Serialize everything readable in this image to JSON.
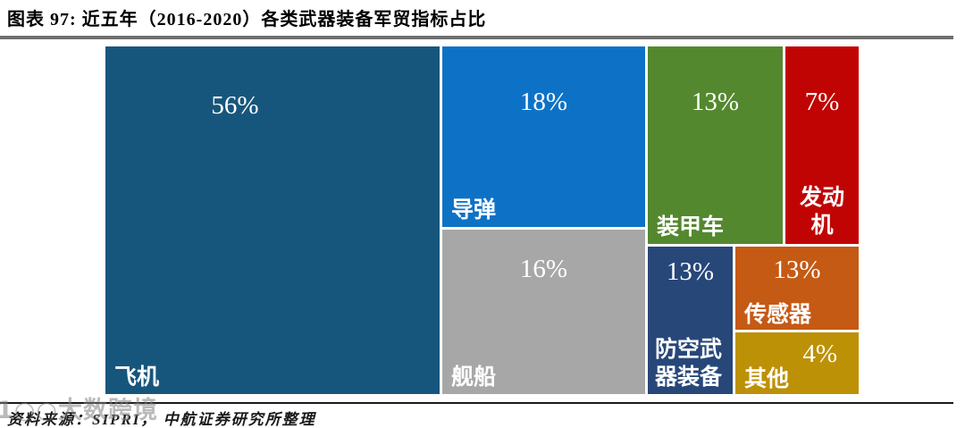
{
  "title": "图表 97:  近五年（2016-2020）各类武器装备军贸指标占比",
  "source_line": "资料来源：SIPRI，  中航证券研究所整理",
  "watermark": "1○○大数跨境",
  "chart_data": {
    "type": "treemap",
    "title": "近五年（2016-2020）各类武器装备军贸指标占比",
    "unit": "percent",
    "legend": "none",
    "items": [
      {
        "label": "飞机",
        "value": 56,
        "pct": "56%",
        "color": "#17567C"
      },
      {
        "label": "导弹",
        "value": 18,
        "pct": "18%",
        "color": "#0D72C6"
      },
      {
        "label": "舰船",
        "value": 16,
        "pct": "16%",
        "color": "#A7A7A7"
      },
      {
        "label": "装甲车",
        "value": 13,
        "pct": "13%",
        "color": "#54882F"
      },
      {
        "label": "发动机",
        "value": 7,
        "pct": "7%",
        "color": "#C00404"
      },
      {
        "label": "防空武器装备",
        "value": 13,
        "pct": "13%",
        "color": "#274779"
      },
      {
        "label": "传感器",
        "value": 13,
        "pct": "13%",
        "color": "#C55A14"
      },
      {
        "label": "其他",
        "value": 4,
        "pct": "4%",
        "color": "#BD9106"
      }
    ]
  }
}
